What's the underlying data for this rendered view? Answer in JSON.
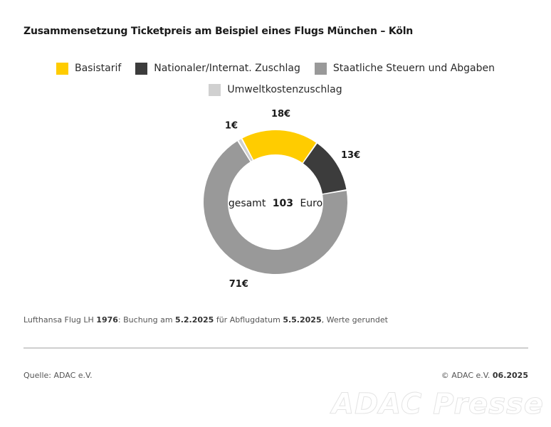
{
  "title": "Zusammensetzung Ticketpreis am Beispiel eines Flugs München – Köln",
  "colors": {
    "basistarif": "#ffcc00",
    "zuschlag": "#3c3c3c",
    "steuern": "#999999",
    "umwelt": "#d0d0d0"
  },
  "chart_data": {
    "type": "pie",
    "style": "donut",
    "categories": [
      "Basistarif",
      "Nationaler/Internat. Zuschlag",
      "Staatliche Steuern und Abgaben",
      "Umweltkostenzuschlag"
    ],
    "values": [
      18,
      13,
      71,
      1
    ],
    "value_labels": [
      "18€",
      "13€",
      "71€",
      "1€"
    ],
    "center_label": {
      "prefix": "gesamt",
      "value": "103",
      "suffix": "Euro"
    },
    "legend_position": "top"
  },
  "footnote": {
    "t1": "Lufthansa Flug LH ",
    "b1": "1976",
    "t2": ": Buchung am ",
    "b2": "5.2.2025",
    "t3": " für Abflugdatum ",
    "b3": "5.5.2025",
    "t4": ", Werte gerundet"
  },
  "source": "Quelle: ADAC e.V.",
  "copyright": {
    "text": "© ADAC e.V. ",
    "date": "06.2025"
  },
  "watermark": "ADAC Presse"
}
